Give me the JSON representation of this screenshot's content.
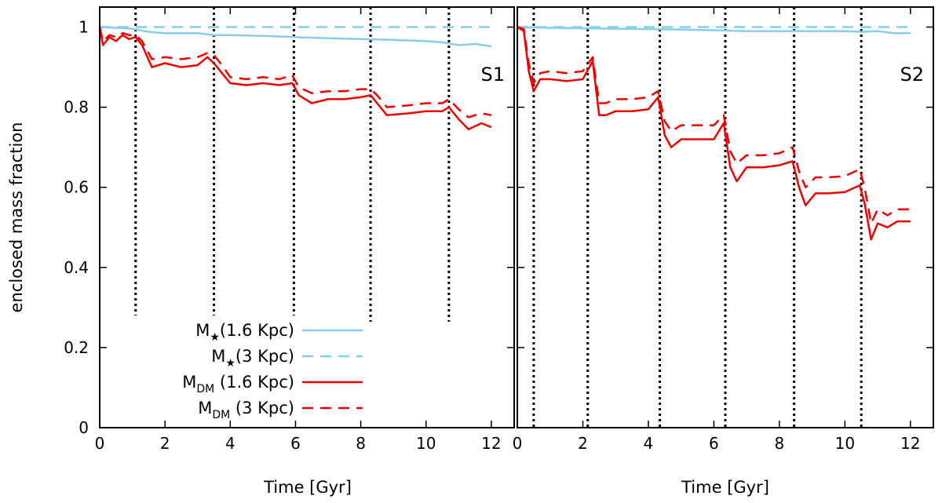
{
  "chart_data": [
    {
      "type": "line",
      "panel_label": "S1",
      "xlabel": "Time [Gyr]",
      "ylabel": "enclosed mass fraction",
      "xlim": [
        0,
        12.7
      ],
      "ylim": [
        0,
        1.05
      ],
      "xticks": [
        "0",
        "2",
        "4",
        "6",
        "8",
        "10",
        "12"
      ],
      "yticks": [
        "0",
        "0.2",
        "0.4",
        "0.6",
        "0.8",
        "1"
      ],
      "vlines": [
        1.1,
        3.5,
        5.95,
        8.3,
        10.7
      ],
      "legend": {
        "placement": "bottom-left",
        "entries": [
          {
            "base": "M",
            "sub": "★",
            "rest": "(1.6 Kpc)"
          },
          {
            "base": "M",
            "sub": "★",
            "rest": "(3 Kpc)"
          },
          {
            "base": "M",
            "sub": "DM",
            "rest": " (1.6 Kpc)"
          },
          {
            "base": "M",
            "sub": "DM",
            "rest": " (3 Kpc)"
          }
        ]
      },
      "series": [
        {
          "color": "#87ceeb",
          "dash": false,
          "x": [
            0,
            0.5,
            1,
            1.5,
            2,
            3,
            3.5,
            4,
            5,
            6,
            7,
            8,
            9,
            10,
            10.5,
            11,
            11.5,
            12
          ],
          "y": [
            1.0,
            0.998,
            0.996,
            0.988,
            0.985,
            0.985,
            0.98,
            0.98,
            0.978,
            0.975,
            0.972,
            0.97,
            0.968,
            0.965,
            0.962,
            0.955,
            0.958,
            0.952
          ]
        },
        {
          "color": "#87ceeb",
          "dash": true,
          "x": [
            0,
            12
          ],
          "y": [
            1.0,
            1.0
          ]
        },
        {
          "color": "#ee0000",
          "dash": false,
          "x": [
            0,
            0.1,
            0.3,
            0.5,
            0.7,
            0.9,
            1.1,
            1.3,
            1.6,
            2,
            2.5,
            3,
            3.3,
            3.5,
            3.7,
            4,
            4.5,
            5,
            5.5,
            5.9,
            6.1,
            6.5,
            7,
            7.5,
            8,
            8.3,
            8.5,
            8.8,
            9.5,
            10,
            10.5,
            10.7,
            11,
            11.3,
            11.7,
            12
          ],
          "y": [
            1.0,
            0.955,
            0.975,
            0.965,
            0.98,
            0.97,
            0.975,
            0.955,
            0.9,
            0.91,
            0.9,
            0.905,
            0.925,
            0.91,
            0.89,
            0.86,
            0.855,
            0.86,
            0.855,
            0.86,
            0.83,
            0.81,
            0.82,
            0.82,
            0.825,
            0.83,
            0.81,
            0.78,
            0.785,
            0.79,
            0.79,
            0.8,
            0.77,
            0.745,
            0.76,
            0.75
          ]
        },
        {
          "color": "#ee0000",
          "dash": true,
          "x": [
            0,
            0.1,
            0.3,
            0.5,
            0.7,
            0.9,
            1.1,
            1.3,
            1.6,
            2,
            2.5,
            3,
            3.3,
            3.5,
            3.7,
            4,
            4.5,
            5,
            5.5,
            5.9,
            6.1,
            6.5,
            7,
            7.5,
            8,
            8.3,
            8.5,
            8.8,
            9.5,
            10,
            10.5,
            10.7,
            11,
            11.3,
            11.7,
            12
          ],
          "y": [
            1.0,
            0.965,
            0.98,
            0.975,
            0.985,
            0.98,
            0.98,
            0.965,
            0.92,
            0.925,
            0.92,
            0.925,
            0.935,
            0.93,
            0.91,
            0.875,
            0.87,
            0.875,
            0.87,
            0.88,
            0.85,
            0.835,
            0.84,
            0.84,
            0.845,
            0.845,
            0.83,
            0.8,
            0.805,
            0.81,
            0.81,
            0.82,
            0.795,
            0.775,
            0.785,
            0.78
          ]
        }
      ]
    },
    {
      "type": "line",
      "panel_label": "S2",
      "xlabel": "Time [Gyr]",
      "ylabel": "",
      "xlim": [
        0,
        12.7
      ],
      "ylim": [
        0,
        1.05
      ],
      "xticks": [
        "0",
        "2",
        "4",
        "6",
        "8",
        "10",
        "12"
      ],
      "yticks": [
        "0",
        "0.2",
        "0.4",
        "0.6",
        "0.8",
        "1"
      ],
      "vlines": [
        0.5,
        2.15,
        4.35,
        6.35,
        8.45,
        10.5
      ],
      "series": [
        {
          "color": "#87ceeb",
          "dash": false,
          "x": [
            0,
            1,
            2,
            3,
            4,
            5,
            6,
            7,
            8,
            9,
            10,
            10.5,
            11,
            11.5,
            12
          ],
          "y": [
            1.0,
            0.998,
            0.997,
            0.996,
            0.995,
            0.994,
            0.992,
            0.99,
            0.99,
            0.99,
            0.99,
            0.988,
            0.99,
            0.985,
            0.985
          ]
        },
        {
          "color": "#87ceeb",
          "dash": true,
          "x": [
            0,
            12
          ],
          "y": [
            1.0,
            1.0
          ]
        },
        {
          "color": "#ee0000",
          "dash": false,
          "x": [
            0,
            0.2,
            0.35,
            0.5,
            0.7,
            1,
            1.5,
            2,
            2.3,
            2.5,
            2.7,
            3,
            3.5,
            4,
            4.3,
            4.5,
            4.7,
            5,
            5.5,
            6,
            6.3,
            6.5,
            6.7,
            7,
            7.5,
            8,
            8.4,
            8.6,
            8.8,
            9.1,
            9.5,
            10,
            10.45,
            10.6,
            10.8,
            11,
            11.3,
            11.6,
            12
          ],
          "y": [
            1.0,
            0.99,
            0.89,
            0.84,
            0.87,
            0.87,
            0.865,
            0.87,
            0.915,
            0.78,
            0.78,
            0.79,
            0.79,
            0.795,
            0.825,
            0.73,
            0.7,
            0.72,
            0.72,
            0.72,
            0.76,
            0.65,
            0.615,
            0.65,
            0.65,
            0.655,
            0.665,
            0.6,
            0.555,
            0.585,
            0.585,
            0.588,
            0.605,
            0.56,
            0.47,
            0.51,
            0.5,
            0.515,
            0.515
          ]
        },
        {
          "color": "#ee0000",
          "dash": true,
          "x": [
            0,
            0.2,
            0.35,
            0.5,
            0.7,
            1,
            1.5,
            2,
            2.3,
            2.5,
            2.7,
            3,
            3.5,
            4,
            4.3,
            4.5,
            4.7,
            5,
            5.5,
            6,
            6.3,
            6.5,
            6.7,
            7,
            7.5,
            8,
            8.4,
            8.6,
            8.8,
            9.1,
            9.5,
            10,
            10.45,
            10.6,
            10.8,
            11,
            11.3,
            11.6,
            12
          ],
          "y": [
            1.0,
            0.995,
            0.91,
            0.86,
            0.885,
            0.89,
            0.885,
            0.89,
            0.925,
            0.81,
            0.81,
            0.82,
            0.82,
            0.825,
            0.84,
            0.765,
            0.74,
            0.755,
            0.755,
            0.755,
            0.78,
            0.69,
            0.66,
            0.68,
            0.68,
            0.685,
            0.7,
            0.64,
            0.6,
            0.625,
            0.625,
            0.628,
            0.645,
            0.6,
            0.51,
            0.545,
            0.53,
            0.545,
            0.545
          ]
        }
      ]
    }
  ]
}
